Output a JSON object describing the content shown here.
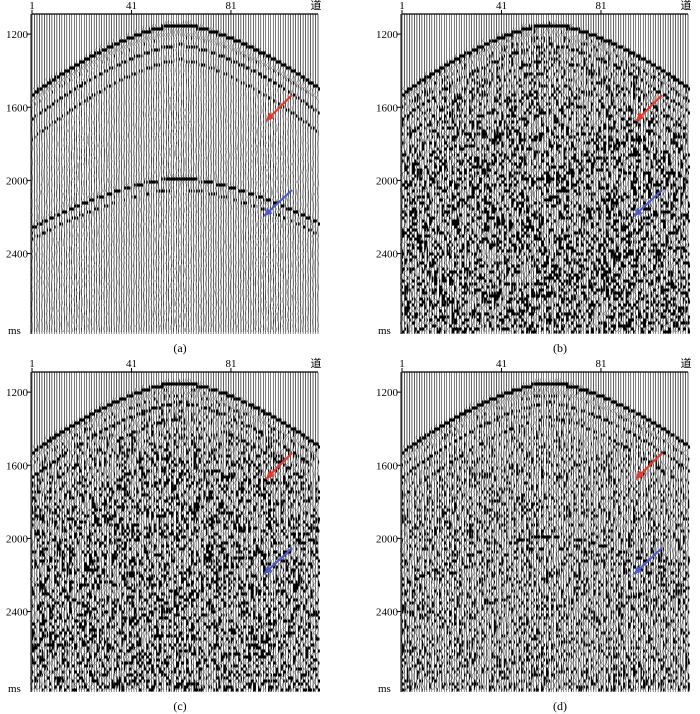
{
  "figure": {
    "panels": [
      {
        "id": "a",
        "caption": "(a)",
        "noise": 0.18,
        "deep_event": true,
        "deep_strength": 0.9
      },
      {
        "id": "b",
        "caption": "(b)",
        "noise": 0.75,
        "deep_event": true,
        "deep_strength": 0.35
      },
      {
        "id": "c",
        "caption": "(c)",
        "noise": 0.7,
        "deep_event": false,
        "deep_strength": 0.0
      },
      {
        "id": "d",
        "caption": "(d)",
        "noise": 0.5,
        "deep_event": true,
        "deep_strength": 0.7
      }
    ],
    "x_ticks": [
      "1",
      "41",
      "81"
    ],
    "x_unit": "道",
    "y_ticks": [
      "1200",
      "1600",
      "2000",
      "2400"
    ],
    "y_unit": "ms",
    "arrow_colors": {
      "shallow": "#e8382e",
      "deep": "#4c5bc9"
    },
    "trace_color": "#000000"
  }
}
